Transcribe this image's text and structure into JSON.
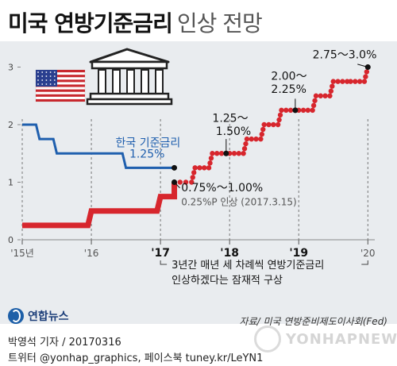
{
  "title": {
    "main": "미국 연방기준금리",
    "sub": "인상 전망"
  },
  "colors": {
    "us_series": "#d7262d",
    "korea_series": "#1f5fae",
    "panel": "#e9ecef"
  },
  "icons": [
    "us-flag-icon",
    "bank-building-icon",
    "yonhap-globe-icon"
  ],
  "chart_data": {
    "type": "line",
    "x_unit": "year",
    "xlim": [
      2015,
      2020.1
    ],
    "ylim": [
      0,
      3.2
    ],
    "yticks": [
      0,
      1,
      2,
      3
    ],
    "ytick_labels": [
      "0",
      "1",
      "2",
      "3"
    ],
    "xticks": [
      2015,
      2016,
      2017,
      2018,
      2019,
      2020
    ],
    "xtick_labels": [
      "'15년",
      "'16",
      "'17",
      "'18",
      "'19",
      "'20"
    ],
    "grid": false,
    "series": [
      {
        "name": "한국 기준금리",
        "style": "solid",
        "points": [
          [
            2015,
            2.0
          ],
          [
            2015.2,
            2.0
          ],
          [
            2015.25,
            1.75
          ],
          [
            2015.45,
            1.75
          ],
          [
            2015.5,
            1.5
          ],
          [
            2016.45,
            1.5
          ],
          [
            2016.5,
            1.25
          ],
          [
            2017.2,
            1.25
          ]
        ]
      },
      {
        "name": "미국 기준금리",
        "style": "solid",
        "points": [
          [
            2015,
            0.25
          ],
          [
            2015.95,
            0.25
          ],
          [
            2016.0,
            0.5
          ],
          [
            2016.95,
            0.5
          ],
          [
            2017.0,
            0.75
          ],
          [
            2017.2,
            0.75
          ],
          [
            2017.2,
            1.0
          ]
        ]
      },
      {
        "name": "미국 기준금리 전망",
        "style": "dots",
        "points": [
          [
            2017.2,
            1.0
          ],
          [
            2017.45,
            1.0
          ],
          [
            2017.5,
            1.25
          ],
          [
            2017.7,
            1.25
          ],
          [
            2017.75,
            1.5
          ],
          [
            2017.95,
            1.5
          ],
          [
            2018.0,
            1.5
          ],
          [
            2018.2,
            1.5
          ],
          [
            2018.25,
            1.75
          ],
          [
            2018.45,
            1.75
          ],
          [
            2018.5,
            2.0
          ],
          [
            2018.7,
            2.0
          ],
          [
            2018.75,
            2.25
          ],
          [
            2018.95,
            2.25
          ],
          [
            2019.0,
            2.25
          ],
          [
            2019.2,
            2.25
          ],
          [
            2019.25,
            2.5
          ],
          [
            2019.45,
            2.5
          ],
          [
            2019.5,
            2.75
          ],
          [
            2019.7,
            2.75
          ],
          [
            2019.75,
            2.75
          ],
          [
            2019.95,
            2.75
          ],
          [
            2020.0,
            3.0
          ]
        ]
      }
    ],
    "annotations": [
      {
        "text": "한국 기준금리",
        "color": "#1f5fae",
        "x": 2016.35,
        "y": 1.62
      },
      {
        "text": "1.25%",
        "color": "#1f5fae",
        "x": 2016.55,
        "y": 1.43
      },
      {
        "text": "0.75%～1.00%",
        "color": "#111",
        "x": 2017.3,
        "y": 0.84
      },
      {
        "text": "0.25%P 인상 (2017.3.15)",
        "color": "#555",
        "x": 2017.3,
        "y": 0.6
      },
      {
        "text": "1.25～",
        "color": "#111",
        "x": 2017.75,
        "y": 2.05
      },
      {
        "text": "1.50%",
        "color": "#111",
        "x": 2017.8,
        "y": 1.82
      },
      {
        "text": "2.00～",
        "color": "#111",
        "x": 2018.6,
        "y": 2.78
      },
      {
        "text": "2.25%",
        "color": "#111",
        "x": 2018.6,
        "y": 2.55
      },
      {
        "text": "2.75～3.0%",
        "color": "#111",
        "x": 2019.2,
        "y": 3.15
      }
    ],
    "bracket_note": [
      "3년간 매년 세 차례씩 연방기준금리",
      "인상하겠다는 잠재적 구상"
    ]
  },
  "footer": {
    "source": "자료/ 미국 연방준비제도이사회(Fed)",
    "logo_text": "연합뉴스",
    "credit_line1": "박영석 기자 / 20170316",
    "credit_line2": "트위터 @yonhap_graphics, 페이스북 tuney.kr/LeYN1",
    "watermark": "YONHAPNEWS"
  }
}
